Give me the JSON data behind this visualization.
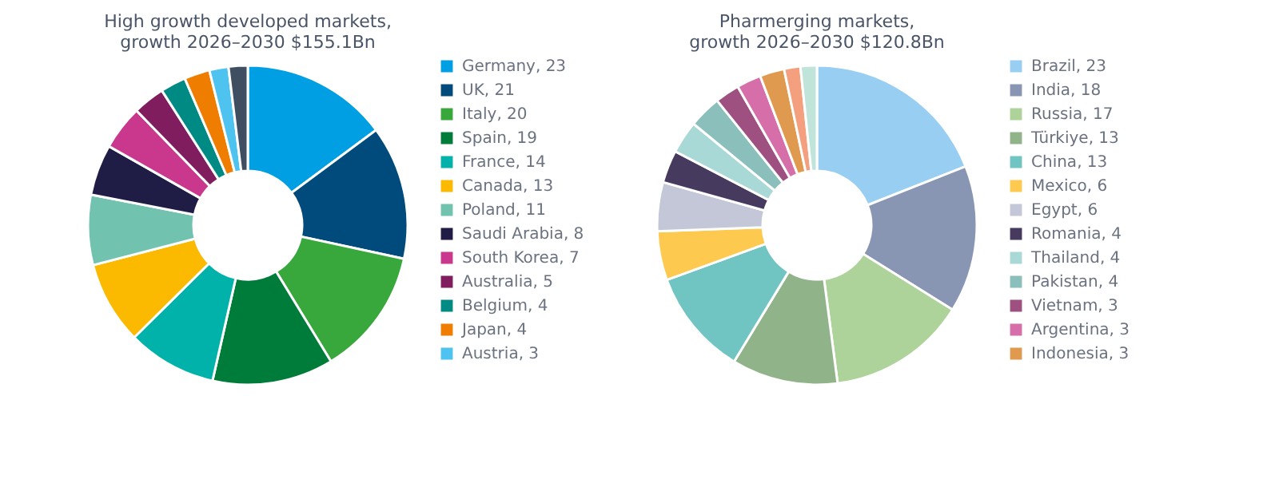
{
  "chart_data": [
    {
      "type": "donut",
      "title": "High growth developed markets,\ngrowth 2026–2030 $155.1Bn",
      "legend": "right",
      "categories": [
        "Germany, 23",
        "UK, 21",
        "Italy, 20",
        "Spain, 19",
        "France, 14",
        "Canada, 13",
        "Poland, 11",
        "Saudi Arabia, 8",
        "South Korea, 7",
        "Australia, 5",
        "Belgium, 4",
        "Japan, 4",
        "Austria, 3",
        null
      ],
      "values": [
        23,
        21,
        20,
        19,
        14,
        13,
        11,
        8,
        7,
        5,
        4,
        4,
        3,
        3
      ],
      "colors": [
        "#009fe3",
        "#004b7c",
        "#38a83c",
        "#007c3a",
        "#00b2a9",
        "#fbb900",
        "#72c2b0",
        "#1f1d45",
        "#c9388c",
        "#7f1d5f",
        "#008a84",
        "#ef7d00",
        "#4fc3f0",
        "#3f4e60"
      ]
    },
    {
      "type": "donut",
      "title": "Pharmerging markets,\ngrowth 2026–2030 $120.8Bn",
      "legend": "right",
      "categories": [
        "Brazil, 23",
        "India, 18",
        "Russia, 17",
        "Türkiye, 13",
        "China, 13",
        "Mexico, 6",
        "Egypt, 6",
        "Romania, 4",
        "Thailand, 4",
        "Pakistan, 4",
        "Vietnam, 3",
        "Argentina, 3",
        "Indonesia, 3",
        null,
        null
      ],
      "values": [
        23,
        18,
        17,
        13,
        13,
        6,
        6,
        4,
        4,
        4,
        3,
        3,
        3,
        2,
        2
      ],
      "colors": [
        "#98cef2",
        "#8896b3",
        "#aed39a",
        "#90b38a",
        "#70c4c2",
        "#fec94f",
        "#c3c7d8",
        "#463a5f",
        "#a9d9d6",
        "#8bbfbb",
        "#9e5080",
        "#d56ea9",
        "#e09a50",
        "#f4a07f",
        "#c0e4d9"
      ]
    }
  ]
}
